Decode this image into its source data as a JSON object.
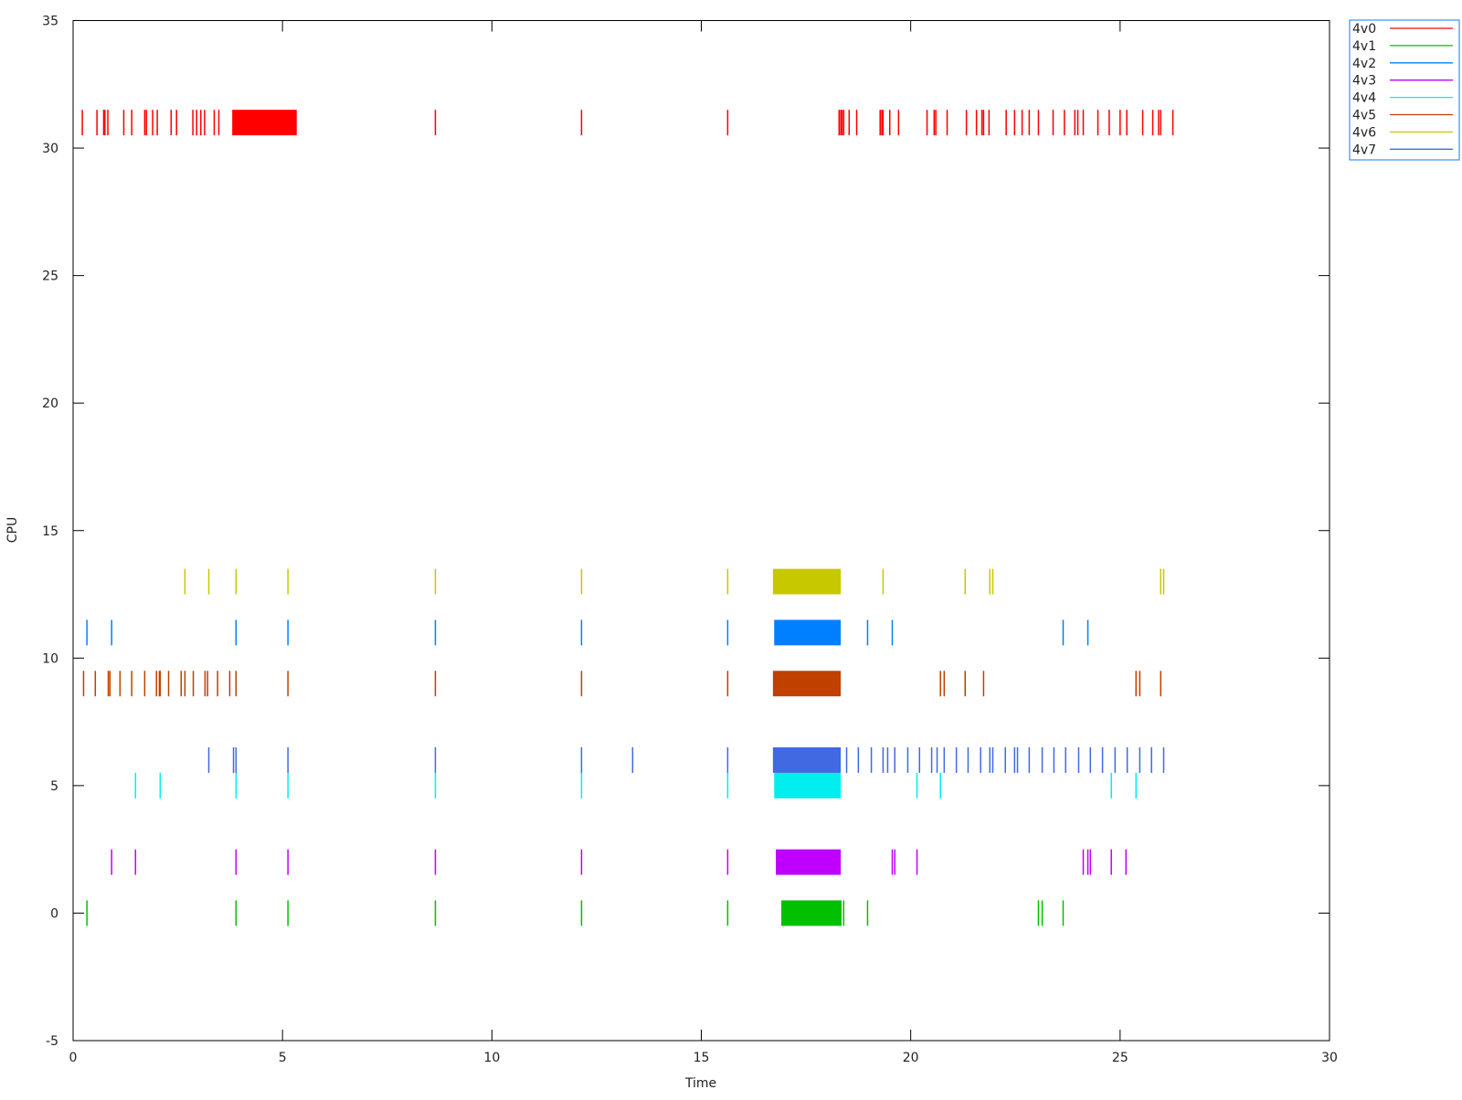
{
  "chart_data": {
    "type": "timeline",
    "title": "",
    "xlabel": "Time",
    "ylabel": "CPU",
    "xlim": [
      0,
      30
    ],
    "ylim": [
      -5,
      35
    ],
    "xticks": [
      0,
      5,
      10,
      15,
      20,
      25,
      30
    ],
    "yticks": [
      -5,
      0,
      5,
      10,
      15,
      20,
      25,
      30,
      35
    ],
    "grid": false,
    "legend_position": "outside-top-right",
    "series": [
      {
        "name": "4v0",
        "color": "#ff0000",
        "cpu": 31,
        "events": [
          0.22,
          0.57,
          0.73,
          0.76,
          0.83,
          1.21,
          1.4,
          1.71,
          1.75,
          1.9,
          2.01,
          2.34,
          2.47,
          2.86,
          2.95,
          3.05,
          3.14,
          3.37,
          3.48,
          8.65,
          12.14,
          15.63,
          18.29,
          18.33,
          18.36,
          18.4,
          18.53,
          18.71,
          19.27,
          19.31,
          19.34,
          19.5,
          19.71,
          20.39,
          20.56,
          20.6,
          20.87,
          21.33,
          21.57,
          21.7,
          21.74,
          21.87,
          22.28,
          22.48,
          22.66,
          22.83,
          23.05,
          23.4,
          23.67,
          23.92,
          23.99,
          24.12,
          24.47,
          24.74,
          25.0,
          25.16,
          25.54,
          25.78,
          25.92,
          25.97,
          26.26
        ],
        "intervals": [
          [
            3.8,
            5.34
          ]
        ]
      },
      {
        "name": "4v1",
        "color": "#00c000",
        "cpu": 0,
        "events": [
          0.33,
          3.89,
          5.13,
          8.65,
          12.14,
          15.63,
          18.4,
          18.97,
          23.05,
          23.14,
          23.64
        ],
        "intervals": [
          [
            16.91,
            18.35
          ]
        ]
      },
      {
        "name": "4v2",
        "color": "#0080ff",
        "cpu": 11,
        "events": [
          0.33,
          0.92,
          3.89,
          5.13,
          8.65,
          12.14,
          15.63,
          18.97,
          19.56,
          23.64,
          24.23
        ],
        "intervals": [
          [
            16.74,
            18.33
          ]
        ]
      },
      {
        "name": "4v3",
        "color": "#c000ff",
        "cpu": 2,
        "events": [
          0.92,
          1.49,
          3.89,
          5.13,
          8.65,
          12.14,
          15.63,
          19.56,
          19.62,
          20.15,
          24.12,
          24.23,
          24.29,
          24.79,
          25.14
        ],
        "intervals": [
          [
            16.78,
            18.33
          ]
        ]
      },
      {
        "name": "4v4",
        "color": "#00eeee",
        "cpu": 5,
        "events": [
          1.49,
          2.08,
          3.89,
          5.13,
          8.65,
          12.14,
          15.63,
          20.15,
          20.71,
          24.79,
          25.38
        ],
        "intervals": [
          [
            16.74,
            18.33
          ]
        ]
      },
      {
        "name": "4v5",
        "color": "#c04000",
        "cpu": 9,
        "events": [
          0.25,
          0.53,
          0.84,
          0.88,
          1.12,
          1.4,
          1.71,
          1.99,
          2.06,
          2.08,
          2.28,
          2.58,
          2.67,
          2.87,
          3.15,
          3.21,
          3.45,
          3.74,
          3.89,
          5.13,
          8.65,
          12.14,
          15.63,
          20.71,
          20.8,
          21.3,
          21.74,
          25.38,
          25.47,
          25.97
        ],
        "intervals": [
          [
            16.71,
            18.33
          ]
        ]
      },
      {
        "name": "4v6",
        "color": "#c8c800",
        "cpu": 13,
        "events": [
          2.67,
          3.24,
          3.89,
          5.13,
          8.65,
          12.14,
          15.63,
          19.34,
          21.3,
          21.89,
          21.96,
          25.97,
          26.04
        ],
        "intervals": [
          [
            16.71,
            18.33
          ]
        ]
      },
      {
        "name": "4v7",
        "color": "#4169e1",
        "cpu": 6,
        "events": [
          3.24,
          3.83,
          3.89,
          5.13,
          8.65,
          12.14,
          13.36,
          15.63,
          18.47,
          18.75,
          19.06,
          19.34,
          19.45,
          19.62,
          19.93,
          20.21,
          20.5,
          20.63,
          20.8,
          21.09,
          21.37,
          21.67,
          21.89,
          21.96,
          22.26,
          22.48,
          22.55,
          22.83,
          23.14,
          23.42,
          23.7,
          24.01,
          24.29,
          24.58,
          24.88,
          25.17,
          25.47,
          25.75,
          26.04
        ],
        "intervals": [
          [
            16.71,
            18.33
          ]
        ]
      }
    ]
  }
}
